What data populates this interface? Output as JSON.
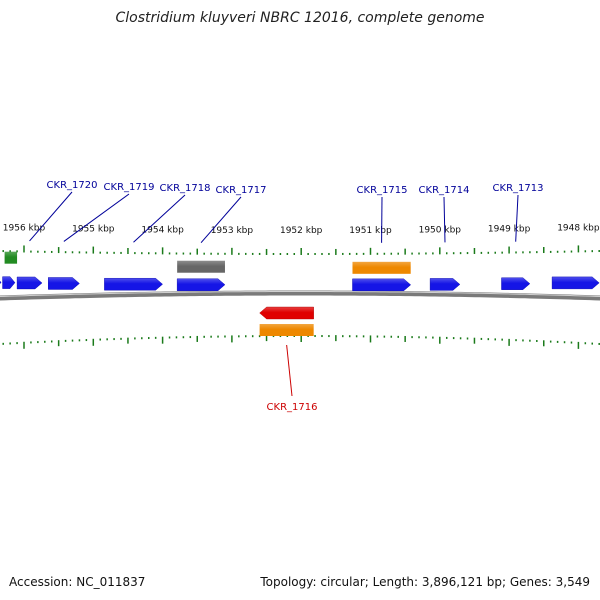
{
  "title": "Clostridium kluyveri NBRC 12016, complete genome",
  "footer": {
    "accession": "Accession: NC_011837",
    "summary": "Topology: circular; Length: 3,896,121 bp; Genes: 3,549"
  },
  "colors": {
    "plus_gene": "#1515e6",
    "minus_gene": "#e00000",
    "cds_orange": "#ee8800",
    "gray_feature": "#666666",
    "green_feature": "#228b22",
    "tick": "#1a7a1a",
    "label_blue": "#000099",
    "label_red": "#cc0000",
    "backbone": "#7a7a7a"
  },
  "scale": {
    "unit": "kbp",
    "ticks": [
      {
        "kbp": 1956,
        "label": "1956 kbp"
      },
      {
        "kbp": 1955,
        "label": "1955 kbp"
      },
      {
        "kbp": 1954,
        "label": "1954 kbp"
      },
      {
        "kbp": 1953,
        "label": "1953 kbp"
      },
      {
        "kbp": 1952,
        "label": "1952 kbp"
      },
      {
        "kbp": 1951,
        "label": "1951 kbp"
      },
      {
        "kbp": 1950,
        "label": "1950 kbp"
      },
      {
        "kbp": 1949,
        "label": "1949 kbp"
      },
      {
        "kbp": 1948,
        "label": "1948 kbp"
      }
    ]
  },
  "features": [
    {
      "type": "gene",
      "strand": "+",
      "start_kbp": 1956.52,
      "end_kbp": 1956.33,
      "label": ""
    },
    {
      "type": "gene",
      "strand": "+",
      "start_kbp": 1956.31,
      "end_kbp": 1956.13,
      "label": ""
    },
    {
      "type": "gene",
      "strand": "+",
      "start_kbp": 1956.1,
      "end_kbp": 1955.74,
      "label": "CKR_1720"
    },
    {
      "type": "gene",
      "strand": "+",
      "start_kbp": 1955.65,
      "end_kbp": 1955.2,
      "label": "CKR_1719"
    },
    {
      "type": "gene",
      "strand": "+",
      "start_kbp": 1954.84,
      "end_kbp": 1954.0,
      "label": "CKR_1718"
    },
    {
      "type": "gene",
      "strand": "+",
      "start_kbp": 1953.79,
      "end_kbp": 1953.1,
      "label": "CKR_1717"
    },
    {
      "type": "gene",
      "strand": "+",
      "start_kbp": 1951.26,
      "end_kbp": 1950.42,
      "label": "CKR_1715"
    },
    {
      "type": "gene",
      "strand": "+",
      "start_kbp": 1950.14,
      "end_kbp": 1949.71,
      "label": "CKR_1714"
    },
    {
      "type": "gene",
      "strand": "+",
      "start_kbp": 1949.11,
      "end_kbp": 1948.7,
      "label": "CKR_1713"
    },
    {
      "type": "gene",
      "strand": "+",
      "start_kbp": 1948.38,
      "end_kbp": 1947.7,
      "label": ""
    },
    {
      "type": "gene",
      "strand": "-",
      "start_kbp": 1952.6,
      "end_kbp": 1951.82,
      "label": "CKR_1716"
    },
    {
      "type": "cds",
      "strand": "-",
      "start_kbp": 1952.6,
      "end_kbp": 1951.82,
      "label": ""
    },
    {
      "type": "cds",
      "strand": "+",
      "start_kbp": 1951.26,
      "end_kbp": 1950.42,
      "label": ""
    },
    {
      "type": "misc",
      "strand": "+",
      "start_kbp": 1953.79,
      "end_kbp": 1953.1,
      "label": ""
    },
    {
      "type": "rna",
      "strand": "+",
      "start_kbp": 1956.28,
      "end_kbp": 1956.1,
      "label": ""
    }
  ]
}
